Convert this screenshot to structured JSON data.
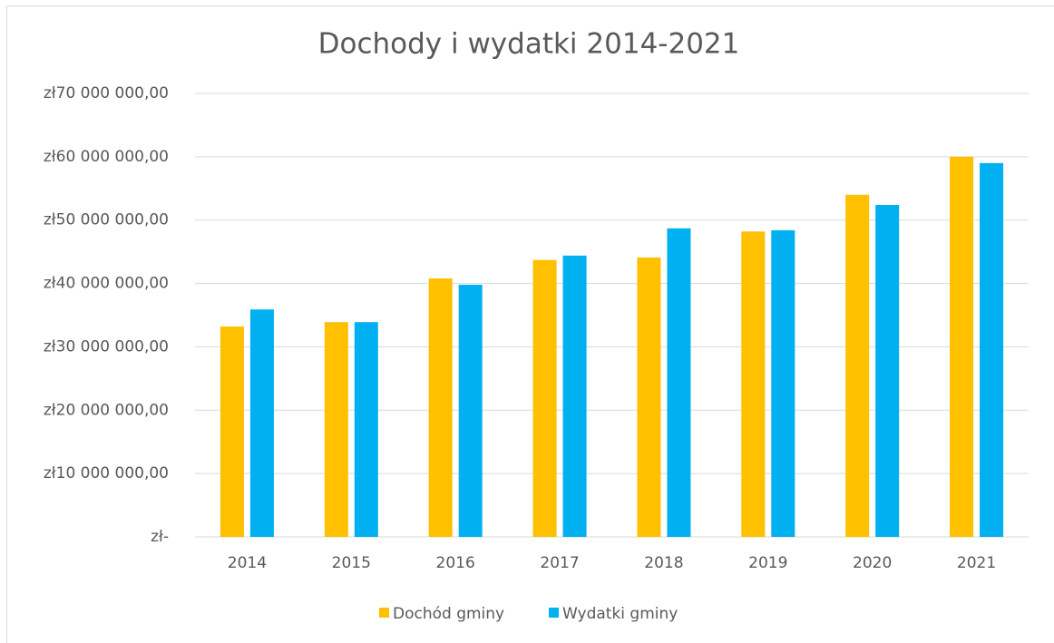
{
  "chart_data": {
    "type": "bar",
    "title": "Dochody i wydatki 2014-2021",
    "categories": [
      "2014",
      "2015",
      "2016",
      "2017",
      "2018",
      "2019",
      "2020",
      "2021"
    ],
    "series": [
      {
        "name": "Dochód gminy",
        "color": "#FFC000",
        "values": [
          33200000,
          33900000,
          40800000,
          43700000,
          44100000,
          48200000,
          54000000,
          60000000
        ]
      },
      {
        "name": "Wydatki gminy",
        "color": "#00B0F0",
        "values": [
          35900000,
          33900000,
          39800000,
          44400000,
          48700000,
          48400000,
          52400000,
          59000000
        ]
      }
    ],
    "ylim": [
      0,
      70000000
    ],
    "yticks": [
      {
        "value": 0,
        "label": "zł-"
      },
      {
        "value": 10000000,
        "label": "zł10 000 000,00"
      },
      {
        "value": 20000000,
        "label": "zł20 000 000,00"
      },
      {
        "value": 30000000,
        "label": "zł30 000 000,00"
      },
      {
        "value": 40000000,
        "label": "zł40 000 000,00"
      },
      {
        "value": 50000000,
        "label": "zł50 000 000,00"
      },
      {
        "value": 60000000,
        "label": "zł60 000 000,00"
      },
      {
        "value": 70000000,
        "label": "zł70 000 000,00"
      }
    ],
    "grid": true,
    "legend": "bottom"
  }
}
